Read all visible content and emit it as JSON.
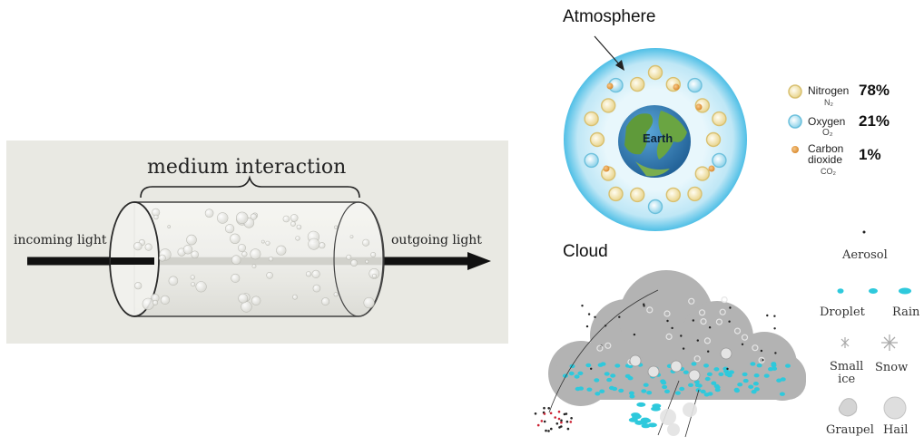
{
  "left_panel": {
    "title": "medium interaction",
    "incoming": "incoming light",
    "outgoing": "outgoing light"
  },
  "atmosphere": {
    "title": "Atmosphere",
    "earth": "Earth",
    "legend": [
      {
        "name": "Nitrogen",
        "formula": "N₂",
        "percent": "78%",
        "color": "#f6e7b8"
      },
      {
        "name": "Oxygen",
        "formula": "O₂",
        "percent": "21%",
        "color": "#bde6f2"
      },
      {
        "name": "Carbon\ndioxide",
        "formula": "CO₂",
        "percent": "1%",
        "color": "#e7a452"
      }
    ]
  },
  "cloud": {
    "title": "Cloud",
    "legend": {
      "aerosol": "Aerosol",
      "droplet": "Droplet",
      "rain": "Rain",
      "small_ice": "Small\nice",
      "snow": "Snow",
      "graupel": "Graupel",
      "hail": "Hail"
    }
  },
  "colors": {
    "panel_bg": "#e9e9e3",
    "droplet": "#2ec9dc",
    "atmosphere_glow": "#4fbfe6"
  }
}
